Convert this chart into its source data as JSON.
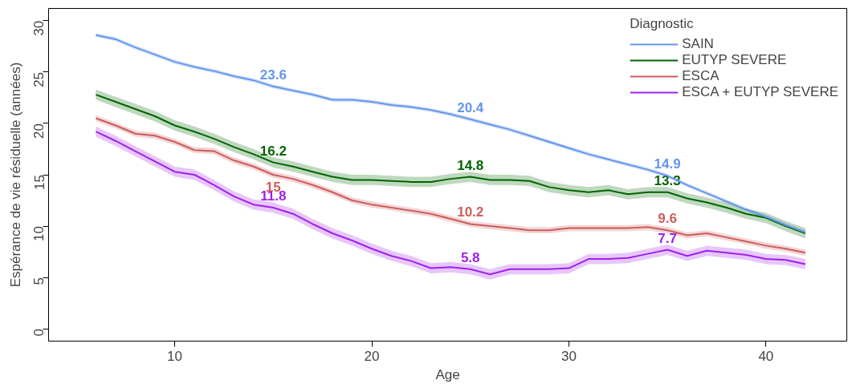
{
  "chart_data": {
    "type": "line",
    "xlabel": "Age",
    "ylabel": "Espérance de vie résiduelle (années)",
    "legend_title": "Diagnostic",
    "legend": "top right",
    "grid": false,
    "line_style": "solid",
    "x": [
      6,
      7,
      8,
      9,
      10,
      11,
      12,
      13,
      14,
      15,
      16,
      17,
      18,
      19,
      20,
      21,
      22,
      23,
      24,
      25,
      26,
      27,
      28,
      29,
      30,
      31,
      32,
      33,
      34,
      35,
      36,
      37,
      38,
      39,
      40,
      41,
      42
    ],
    "xlim": [
      3.6,
      44.1
    ],
    "xticks": [
      10,
      20,
      30,
      40
    ],
    "ylim": [
      -1.2,
      31.2
    ],
    "yticks": [
      0,
      5,
      10,
      15,
      20,
      25,
      30
    ],
    "series": [
      {
        "name": "SAIN",
        "color": "#6495ed",
        "values": [
          28.6,
          28.2,
          27.4,
          26.7,
          26.0,
          25.5,
          25.1,
          24.6,
          24.2,
          23.6,
          23.2,
          22.8,
          22.3,
          22.3,
          22.1,
          21.8,
          21.6,
          21.3,
          20.9,
          20.4,
          19.9,
          19.4,
          18.8,
          18.2,
          17.6,
          17.0,
          16.5,
          16.0,
          15.5,
          14.9,
          14.0,
          13.2,
          12.4,
          11.6,
          10.9,
          10.1,
          9.4
        ],
        "lower": [
          28.4,
          28.0,
          27.2,
          26.5,
          25.8,
          25.3,
          24.9,
          24.4,
          24.0,
          23.4,
          23.0,
          22.6,
          22.1,
          22.1,
          21.9,
          21.6,
          21.4,
          21.1,
          20.7,
          20.2,
          19.7,
          19.2,
          18.6,
          18.0,
          17.4,
          16.8,
          16.3,
          15.8,
          15.3,
          14.7,
          13.8,
          13.0,
          12.2,
          11.4,
          10.7,
          9.9,
          9.2
        ],
        "upper": [
          28.8,
          28.4,
          27.6,
          26.9,
          26.2,
          25.7,
          25.3,
          24.8,
          24.4,
          23.8,
          23.4,
          23.0,
          22.5,
          22.5,
          22.3,
          22.0,
          21.8,
          21.5,
          21.1,
          20.6,
          20.1,
          19.6,
          19.0,
          18.4,
          17.8,
          17.2,
          16.7,
          16.2,
          15.7,
          15.1,
          14.2,
          13.4,
          12.6,
          11.8,
          11.1,
          10.3,
          9.6
        ],
        "value_labels": [
          null,
          null,
          null,
          null,
          null,
          null,
          null,
          null,
          null,
          "23.6",
          null,
          null,
          null,
          null,
          null,
          null,
          null,
          null,
          null,
          "20.4",
          null,
          null,
          null,
          null,
          null,
          null,
          null,
          null,
          null,
          "14.9",
          null,
          null,
          null,
          null,
          null,
          null,
          null
        ]
      },
      {
        "name": "EUTYP SEVERE",
        "color": "#006400",
        "values": [
          22.8,
          22.1,
          21.4,
          20.7,
          19.8,
          19.2,
          18.5,
          17.7,
          17.0,
          16.2,
          15.8,
          15.3,
          14.8,
          14.5,
          14.5,
          14.4,
          14.3,
          14.3,
          14.6,
          14.8,
          14.5,
          14.5,
          14.4,
          13.8,
          13.5,
          13.3,
          13.5,
          13.1,
          13.3,
          13.3,
          12.7,
          12.3,
          11.8,
          11.2,
          10.8,
          10.0,
          9.3
        ],
        "lower": [
          22.3,
          21.6,
          20.9,
          20.2,
          19.3,
          18.7,
          18.0,
          17.2,
          16.5,
          15.7,
          15.3,
          14.8,
          14.3,
          14.0,
          14.0,
          13.9,
          13.8,
          13.8,
          14.1,
          14.3,
          14.0,
          14.0,
          13.9,
          13.3,
          13.0,
          12.8,
          13.0,
          12.6,
          12.8,
          12.8,
          12.2,
          11.8,
          11.3,
          10.7,
          10.3,
          9.5,
          8.8
        ],
        "upper": [
          23.3,
          22.6,
          21.9,
          21.2,
          20.3,
          19.7,
          19.0,
          18.2,
          17.5,
          16.7,
          16.3,
          15.8,
          15.3,
          15.0,
          15.0,
          14.9,
          14.8,
          14.8,
          15.1,
          15.3,
          15.0,
          15.0,
          14.9,
          14.3,
          14.0,
          13.8,
          14.0,
          13.6,
          13.8,
          13.8,
          13.2,
          12.8,
          12.3,
          11.7,
          11.3,
          10.5,
          9.8
        ],
        "value_labels": [
          null,
          null,
          null,
          null,
          null,
          null,
          null,
          null,
          null,
          "16.2",
          null,
          null,
          null,
          null,
          null,
          null,
          null,
          null,
          null,
          "14.8",
          null,
          null,
          null,
          null,
          null,
          null,
          null,
          null,
          null,
          "13.3",
          null,
          null,
          null,
          null,
          null,
          null,
          null
        ]
      },
      {
        "name": "ESCA",
        "color": "#cd5c5c",
        "values": [
          20.5,
          19.8,
          19.0,
          18.8,
          18.2,
          17.4,
          17.3,
          16.4,
          15.8,
          15.0,
          14.6,
          14.0,
          13.3,
          12.5,
          12.1,
          11.8,
          11.5,
          11.2,
          10.7,
          10.2,
          10.0,
          9.8,
          9.6,
          9.6,
          9.8,
          9.8,
          9.8,
          9.8,
          9.9,
          9.6,
          9.1,
          9.3,
          8.9,
          8.5,
          8.1,
          7.8,
          7.4
        ],
        "lower": [
          20.2,
          19.5,
          18.7,
          18.5,
          17.9,
          17.1,
          17.0,
          16.1,
          15.5,
          14.7,
          14.3,
          13.7,
          13.0,
          12.2,
          11.8,
          11.5,
          11.2,
          10.9,
          10.4,
          9.9,
          9.7,
          9.5,
          9.3,
          9.3,
          9.5,
          9.5,
          9.5,
          9.5,
          9.6,
          9.3,
          8.8,
          9.0,
          8.6,
          8.2,
          7.8,
          7.5,
          7.1
        ],
        "upper": [
          20.8,
          20.1,
          19.3,
          19.1,
          18.5,
          17.7,
          17.6,
          16.7,
          16.1,
          15.3,
          14.9,
          14.3,
          13.6,
          12.8,
          12.4,
          12.1,
          11.8,
          11.5,
          11.0,
          10.5,
          10.3,
          10.1,
          9.9,
          9.9,
          10.1,
          10.1,
          10.1,
          10.1,
          10.2,
          9.9,
          9.4,
          9.6,
          9.2,
          8.8,
          8.4,
          8.1,
          7.7
        ],
        "value_labels": [
          null,
          null,
          null,
          null,
          null,
          null,
          null,
          null,
          null,
          "15",
          null,
          null,
          null,
          null,
          null,
          null,
          null,
          null,
          null,
          "10.2",
          null,
          null,
          null,
          null,
          null,
          null,
          null,
          null,
          null,
          "9.6",
          null,
          null,
          null,
          null,
          null,
          null,
          null
        ]
      },
      {
        "name": "ESCA + EUTYP SEVERE",
        "color": "#a020f0",
        "values": [
          19.2,
          18.3,
          17.3,
          16.3,
          15.3,
          15.0,
          14.0,
          12.9,
          12.1,
          11.8,
          11.2,
          10.2,
          9.3,
          8.6,
          7.8,
          7.1,
          6.6,
          5.9,
          6.0,
          5.8,
          5.3,
          5.8,
          5.8,
          5.8,
          5.9,
          6.8,
          6.8,
          6.9,
          7.3,
          7.7,
          7.1,
          7.6,
          7.4,
          7.2,
          6.8,
          6.7,
          6.3
        ],
        "lower": [
          18.7,
          17.8,
          16.8,
          15.8,
          14.8,
          14.5,
          13.5,
          12.4,
          11.6,
          11.3,
          10.7,
          9.7,
          8.8,
          8.1,
          7.3,
          6.6,
          6.1,
          5.4,
          5.5,
          5.3,
          4.8,
          5.3,
          5.3,
          5.3,
          5.4,
          6.3,
          6.3,
          6.4,
          6.8,
          7.2,
          6.6,
          7.1,
          6.9,
          6.7,
          6.3,
          6.2,
          5.8
        ],
        "upper": [
          19.7,
          18.8,
          17.8,
          16.8,
          15.8,
          15.5,
          14.5,
          13.4,
          12.6,
          12.3,
          11.7,
          10.7,
          9.8,
          9.1,
          8.3,
          7.6,
          7.1,
          6.4,
          6.5,
          6.3,
          5.8,
          6.3,
          6.3,
          6.3,
          6.4,
          7.3,
          7.3,
          7.4,
          7.8,
          8.2,
          7.6,
          8.1,
          7.9,
          7.7,
          7.3,
          7.2,
          6.8
        ],
        "value_labels": [
          null,
          null,
          null,
          null,
          null,
          null,
          null,
          null,
          null,
          "11.8",
          null,
          null,
          null,
          null,
          null,
          null,
          null,
          null,
          null,
          "5.8",
          null,
          null,
          null,
          null,
          null,
          null,
          null,
          null,
          null,
          "7.7",
          null,
          null,
          null,
          null,
          null,
          null,
          null
        ]
      }
    ]
  }
}
